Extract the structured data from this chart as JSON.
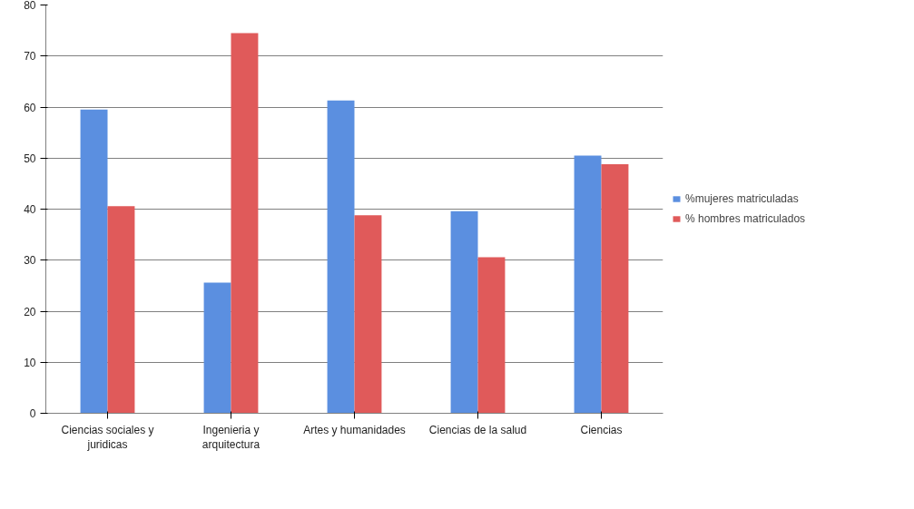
{
  "chart_data": {
    "type": "bar",
    "categories": [
      "Ciencias sociales y juridicas",
      "Ingenieria y arquitectura",
      "Artes y humanidades",
      "Ciencias de la salud",
      "Ciencias"
    ],
    "series": [
      {
        "name": "%mujeres matriculadas",
        "color": "#5b8fe0",
        "values": [
          59.5,
          25.6,
          61.3,
          39.6,
          50.5
        ]
      },
      {
        "name": "% hombres matriculados",
        "color": "#e05a5a",
        "values": [
          40.6,
          74.5,
          38.8,
          30.6,
          48.8
        ]
      }
    ],
    "ylim": [
      0,
      80
    ],
    "yticks": [
      0,
      10,
      20,
      30,
      40,
      50,
      60,
      70,
      80
    ],
    "grid": "y",
    "legend": "right"
  }
}
